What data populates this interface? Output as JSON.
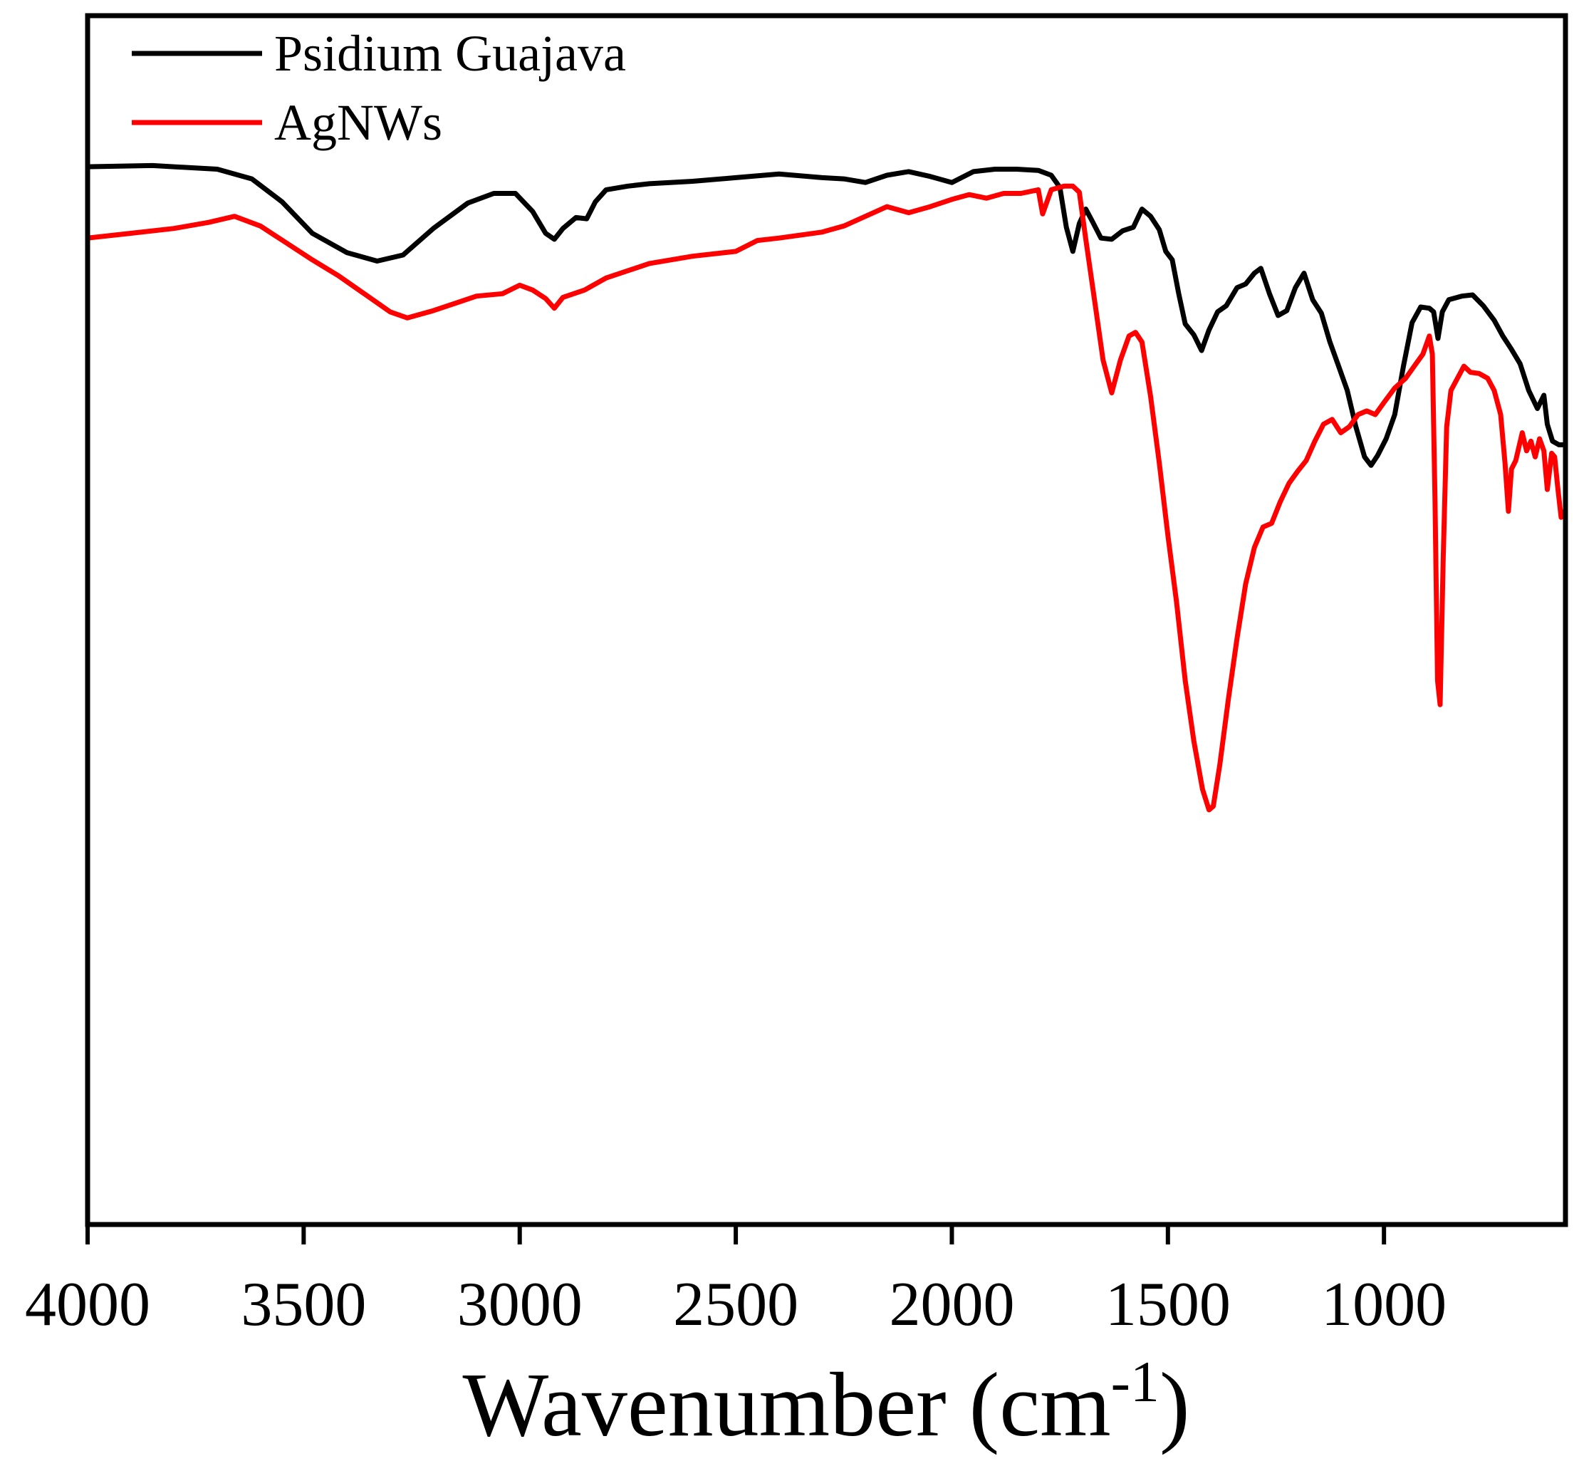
{
  "chart_data": {
    "type": "line",
    "title": "",
    "xlabel": "Wavenumber (cm",
    "xlabel_sup": "-1",
    "xlabel_close": ")",
    "ylabel": "",
    "xlim": [
      4000,
      580
    ],
    "ylim": [
      0,
      100
    ],
    "x_ticks": [
      4000,
      3500,
      3000,
      2500,
      2000,
      1500,
      1000
    ],
    "x_tick_labels": [
      "4000",
      "3500",
      "3000",
      "2500",
      "2000",
      "1500",
      "1000"
    ],
    "legend": {
      "placement": "top-left"
    },
    "series": [
      {
        "name": "Psidium Guajava",
        "color": "#000000",
        "points": [
          [
            4000,
            87.5
          ],
          [
            3850,
            87.6
          ],
          [
            3700,
            87.3
          ],
          [
            3620,
            86.5
          ],
          [
            3550,
            84.6
          ],
          [
            3480,
            82.0
          ],
          [
            3400,
            80.4
          ],
          [
            3330,
            79.7
          ],
          [
            3270,
            80.2
          ],
          [
            3200,
            82.4
          ],
          [
            3120,
            84.5
          ],
          [
            3060,
            85.3
          ],
          [
            3010,
            85.3
          ],
          [
            2970,
            83.8
          ],
          [
            2940,
            82.0
          ],
          [
            2920,
            81.5
          ],
          [
            2900,
            82.4
          ],
          [
            2870,
            83.3
          ],
          [
            2845,
            83.2
          ],
          [
            2825,
            84.6
          ],
          [
            2800,
            85.6
          ],
          [
            2750,
            85.9
          ],
          [
            2700,
            86.1
          ],
          [
            2600,
            86.3
          ],
          [
            2500,
            86.6
          ],
          [
            2400,
            86.9
          ],
          [
            2300,
            86.6
          ],
          [
            2250,
            86.5
          ],
          [
            2200,
            86.2
          ],
          [
            2150,
            86.8
          ],
          [
            2100,
            87.1
          ],
          [
            2050,
            86.7
          ],
          [
            2000,
            86.2
          ],
          [
            1950,
            87.1
          ],
          [
            1900,
            87.3
          ],
          [
            1850,
            87.3
          ],
          [
            1800,
            87.2
          ],
          [
            1770,
            86.8
          ],
          [
            1750,
            85.8
          ],
          [
            1735,
            82.5
          ],
          [
            1720,
            80.5
          ],
          [
            1705,
            82.8
          ],
          [
            1690,
            84.0
          ],
          [
            1675,
            83.0
          ],
          [
            1655,
            81.6
          ],
          [
            1630,
            81.5
          ],
          [
            1605,
            82.2
          ],
          [
            1580,
            82.5
          ],
          [
            1560,
            84.0
          ],
          [
            1540,
            83.4
          ],
          [
            1520,
            82.3
          ],
          [
            1505,
            80.5
          ],
          [
            1490,
            79.8
          ],
          [
            1475,
            77.0
          ],
          [
            1460,
            74.5
          ],
          [
            1440,
            73.6
          ],
          [
            1422,
            72.3
          ],
          [
            1405,
            74.0
          ],
          [
            1385,
            75.5
          ],
          [
            1365,
            76.0
          ],
          [
            1340,
            77.5
          ],
          [
            1320,
            77.8
          ],
          [
            1300,
            78.7
          ],
          [
            1285,
            79.1
          ],
          [
            1265,
            77.0
          ],
          [
            1245,
            75.2
          ],
          [
            1225,
            75.6
          ],
          [
            1205,
            77.5
          ],
          [
            1185,
            78.7
          ],
          [
            1165,
            76.5
          ],
          [
            1145,
            75.4
          ],
          [
            1125,
            73.0
          ],
          [
            1105,
            71.0
          ],
          [
            1085,
            69.0
          ],
          [
            1065,
            66.0
          ],
          [
            1045,
            63.5
          ],
          [
            1030,
            62.8
          ],
          [
            1015,
            63.6
          ],
          [
            995,
            65.0
          ],
          [
            975,
            67.0
          ],
          [
            955,
            71.0
          ],
          [
            935,
            74.6
          ],
          [
            915,
            75.9
          ],
          [
            895,
            75.8
          ],
          [
            885,
            75.5
          ],
          [
            875,
            73.3
          ],
          [
            865,
            75.5
          ],
          [
            850,
            76.5
          ],
          [
            820,
            76.8
          ],
          [
            795,
            76.9
          ],
          [
            770,
            76.0
          ],
          [
            745,
            74.8
          ],
          [
            725,
            73.5
          ],
          [
            705,
            72.4
          ],
          [
            685,
            71.2
          ],
          [
            665,
            69.0
          ],
          [
            645,
            67.5
          ],
          [
            630,
            68.6
          ],
          [
            622,
            66.2
          ],
          [
            610,
            64.8
          ],
          [
            595,
            64.5
          ],
          [
            585,
            64.5
          ]
        ]
      },
      {
        "name": "AgNWs",
        "color": "#ff0000",
        "points": [
          [
            4000,
            81.6
          ],
          [
            3900,
            82.0
          ],
          [
            3800,
            82.4
          ],
          [
            3720,
            82.9
          ],
          [
            3660,
            83.4
          ],
          [
            3600,
            82.6
          ],
          [
            3540,
            81.2
          ],
          [
            3480,
            79.8
          ],
          [
            3420,
            78.5
          ],
          [
            3360,
            77.0
          ],
          [
            3300,
            75.5
          ],
          [
            3260,
            75.0
          ],
          [
            3200,
            75.6
          ],
          [
            3150,
            76.2
          ],
          [
            3100,
            76.8
          ],
          [
            3040,
            77.0
          ],
          [
            3000,
            77.7
          ],
          [
            2970,
            77.3
          ],
          [
            2940,
            76.6
          ],
          [
            2920,
            75.8
          ],
          [
            2900,
            76.7
          ],
          [
            2850,
            77.3
          ],
          [
            2800,
            78.3
          ],
          [
            2700,
            79.5
          ],
          [
            2600,
            80.1
          ],
          [
            2500,
            80.5
          ],
          [
            2450,
            81.4
          ],
          [
            2400,
            81.6
          ],
          [
            2300,
            82.1
          ],
          [
            2250,
            82.6
          ],
          [
            2200,
            83.4
          ],
          [
            2150,
            84.2
          ],
          [
            2100,
            83.7
          ],
          [
            2050,
            84.2
          ],
          [
            2000,
            84.8
          ],
          [
            1960,
            85.2
          ],
          [
            1920,
            84.9
          ],
          [
            1880,
            85.3
          ],
          [
            1840,
            85.3
          ],
          [
            1800,
            85.6
          ],
          [
            1790,
            83.6
          ],
          [
            1770,
            85.6
          ],
          [
            1740,
            85.9
          ],
          [
            1720,
            85.9
          ],
          [
            1705,
            85.4
          ],
          [
            1690,
            81.5
          ],
          [
            1670,
            76.5
          ],
          [
            1650,
            71.5
          ],
          [
            1630,
            68.8
          ],
          [
            1610,
            71.5
          ],
          [
            1590,
            73.5
          ],
          [
            1575,
            73.8
          ],
          [
            1560,
            73.0
          ],
          [
            1540,
            68.5
          ],
          [
            1520,
            63.0
          ],
          [
            1500,
            57.0
          ],
          [
            1480,
            51.5
          ],
          [
            1460,
            45.0
          ],
          [
            1440,
            40.0
          ],
          [
            1420,
            36.0
          ],
          [
            1405,
            34.3
          ],
          [
            1395,
            34.6
          ],
          [
            1380,
            38.0
          ],
          [
            1360,
            43.5
          ],
          [
            1340,
            48.5
          ],
          [
            1320,
            53.0
          ],
          [
            1300,
            56.0
          ],
          [
            1280,
            57.7
          ],
          [
            1260,
            58.0
          ],
          [
            1240,
            59.8
          ],
          [
            1220,
            61.3
          ],
          [
            1200,
            62.3
          ],
          [
            1180,
            63.2
          ],
          [
            1160,
            64.8
          ],
          [
            1140,
            66.2
          ],
          [
            1120,
            66.6
          ],
          [
            1100,
            65.5
          ],
          [
            1080,
            66.0
          ],
          [
            1060,
            67.0
          ],
          [
            1040,
            67.3
          ],
          [
            1020,
            67.0
          ],
          [
            1000,
            68.0
          ],
          [
            975,
            69.2
          ],
          [
            950,
            70.0
          ],
          [
            930,
            71.0
          ],
          [
            910,
            72.0
          ],
          [
            895,
            73.5
          ],
          [
            888,
            72.0
          ],
          [
            882,
            60.0
          ],
          [
            876,
            45.0
          ],
          [
            870,
            43.0
          ],
          [
            863,
            55.0
          ],
          [
            855,
            66.0
          ],
          [
            845,
            69.0
          ],
          [
            830,
            70.0
          ],
          [
            815,
            71.0
          ],
          [
            800,
            70.5
          ],
          [
            780,
            70.4
          ],
          [
            760,
            70.0
          ],
          [
            745,
            69.0
          ],
          [
            730,
            67.0
          ],
          [
            720,
            63.0
          ],
          [
            712,
            59.0
          ],
          [
            705,
            62.5
          ],
          [
            695,
            63.2
          ],
          [
            680,
            65.5
          ],
          [
            670,
            64.0
          ],
          [
            660,
            64.8
          ],
          [
            650,
            63.5
          ],
          [
            640,
            65.0
          ],
          [
            630,
            64.0
          ],
          [
            622,
            60.8
          ],
          [
            612,
            63.8
          ],
          [
            605,
            63.5
          ],
          [
            598,
            61.0
          ],
          [
            590,
            58.5
          ],
          [
            582,
            59.0
          ]
        ]
      }
    ]
  }
}
